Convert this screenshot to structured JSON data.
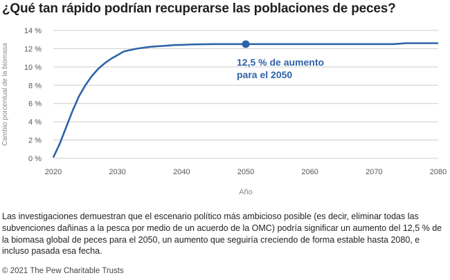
{
  "title": "¿Qué tan rápido podrían recuperarse las poblaciones de peces?",
  "description": "Las investigaciones demuestran que el escenario político más ambicioso posible (es decir, eliminar todas las subvenciones dañinas a la pesca por medio de un acuerdo de la OMC) podría significar un aumento del 12,5 % de la biomasa global de peces para el 2050, un aumento que seguiría creciendo de forma estable hasta 2080, e incluso pasada esa fecha.",
  "source": "© 2021 The Pew Charitable Trusts",
  "colors": {
    "line": "#2e63a8",
    "axis_text": "#555555",
    "axis_label": "#888888",
    "grid": "#cccccc",
    "annotation": "#2e63a8"
  },
  "chart_data": {
    "type": "line",
    "xlabel": "Año",
    "ylabel": "Cambio porcentual de la biomasa",
    "xlim": [
      2020,
      2080
    ],
    "ylim": [
      0,
      14
    ],
    "x_ticks": [
      2020,
      2030,
      2040,
      2050,
      2060,
      2070,
      2080
    ],
    "y_ticks": [
      0,
      2,
      4,
      6,
      8,
      10,
      12,
      14
    ],
    "y_tick_labels": [
      "0 %",
      "2 %",
      "4 %",
      "6 %",
      "8 %",
      "10 %",
      "12 %",
      "14 %"
    ],
    "grid": "horizontal",
    "series": [
      {
        "x": [
          2020,
          2021,
          2022,
          2023,
          2024,
          2025,
          2026,
          2027,
          2028,
          2029,
          2030,
          2031,
          2032,
          2033,
          2034,
          2035,
          2036,
          2037,
          2038,
          2039,
          2040,
          2041,
          2042,
          2045,
          2050,
          2055,
          2060,
          2065,
          2070,
          2073,
          2074,
          2075,
          2080
        ],
        "y": [
          0.1,
          1.6,
          3.4,
          5.2,
          6.8,
          8.0,
          9.0,
          9.8,
          10.4,
          10.9,
          11.3,
          11.7,
          11.85,
          12.0,
          12.1,
          12.2,
          12.25,
          12.3,
          12.35,
          12.4,
          12.42,
          12.45,
          12.47,
          12.5,
          12.5,
          12.5,
          12.5,
          12.5,
          12.5,
          12.5,
          12.55,
          12.6,
          12.6
        ]
      }
    ],
    "highlight": {
      "x": 2050,
      "y": 12.5,
      "label_line1": "12,5 % de aumento",
      "label_line2": "para el 2050"
    }
  }
}
